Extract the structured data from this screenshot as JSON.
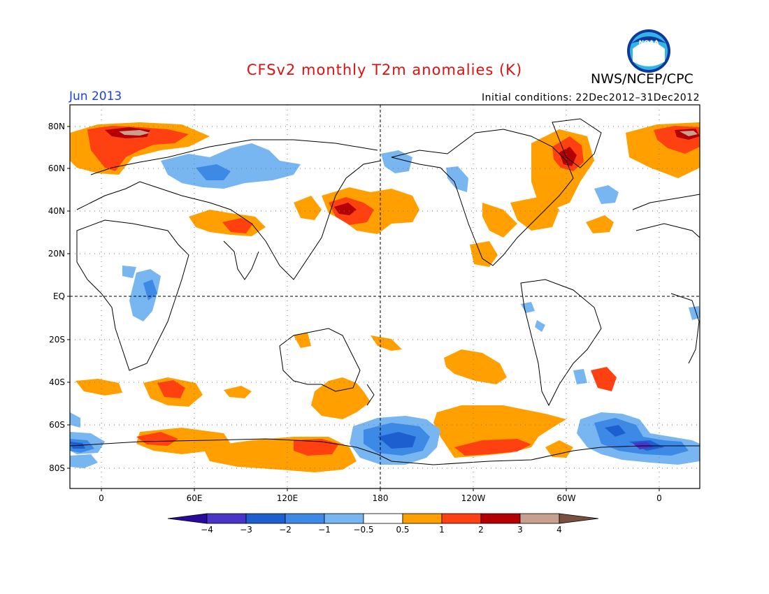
{
  "title": "CFSv2 monthly T2m anomalies (K)",
  "agency": "NWS/NCEP/CPC",
  "logo_text": "NOAA",
  "valid_month": "Jun 2013",
  "initial_conditions": "Initial conditions: 22Dec2012–31Dec2012",
  "lat_labels": [
    "80N",
    "60N",
    "40N",
    "20N",
    "EQ",
    "20S",
    "40S",
    "60S",
    "80S"
  ],
  "lon_labels": [
    "0",
    "60E",
    "120E",
    "180",
    "120W",
    "60W",
    "0"
  ],
  "colorbar": {
    "labels": [
      "−4",
      "−3",
      "−2",
      "−1",
      "−0.5",
      "0.5",
      "1",
      "2",
      "3",
      "4"
    ],
    "colors": [
      "#2a0a9c",
      "#4a35c8",
      "#1e5fd0",
      "#3c8ae6",
      "#78b6f2",
      "#ffffff",
      "#ffa000",
      "#ff4010",
      "#b40000",
      "#c8a090",
      "#7a5040"
    ]
  },
  "colors": {
    "title": "#e01010",
    "month": "#1a3cff",
    "orange": "#ffa000",
    "red_orange": "#ff4010",
    "dark_red": "#b40000",
    "light_blue": "#78b6f2",
    "mid_blue": "#3c8ae6",
    "blue": "#1e5fd0"
  }
}
